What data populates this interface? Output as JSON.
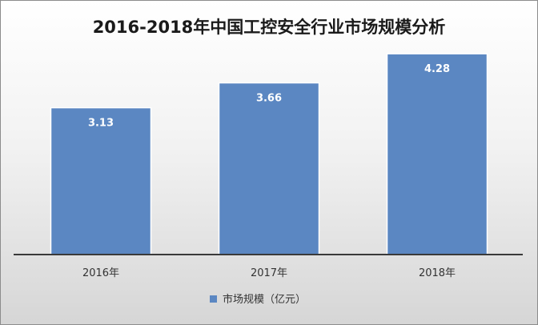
{
  "chart_data": {
    "type": "bar",
    "title": "2016-2018年中国工控安全行业市场规模分析",
    "categories": [
      "2016年",
      "2017年",
      "2018年"
    ],
    "series": [
      {
        "name": "市场规模（亿元）",
        "values": [
          3.13,
          3.66,
          4.28
        ]
      }
    ],
    "data_labels": [
      "3.13",
      "3.66",
      "4.28"
    ],
    "ylim": [
      0,
      5
    ],
    "grid": false,
    "legend_position": "bottom",
    "colors": {
      "bar": "#5b87c2"
    }
  }
}
